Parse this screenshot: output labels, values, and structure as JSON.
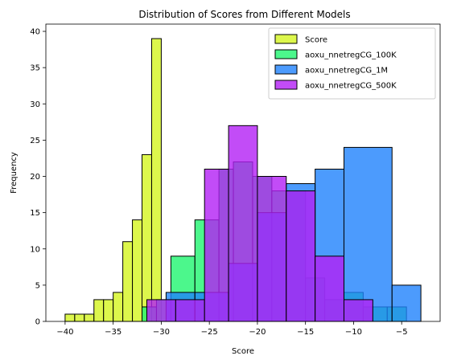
{
  "chart_data": {
    "type": "histogram",
    "title": "Distribution of Scores from Different Models",
    "xlabel": "Score",
    "ylabel": "Frequency",
    "xlim": [
      -42,
      -1
    ],
    "ylim": [
      0,
      41
    ],
    "xticks": [
      -40,
      -35,
      -30,
      -25,
      -20,
      -15,
      -10,
      -5
    ],
    "yticks": [
      0,
      5,
      10,
      15,
      20,
      25,
      30,
      35,
      40
    ],
    "grid": false,
    "legend_position": "top-right",
    "series": [
      {
        "name": "Score",
        "color": "#d4f51f",
        "bars": [
          {
            "x0": -40.0,
            "x1": -39.0,
            "value": 1
          },
          {
            "x0": -39.0,
            "x1": -38.0,
            "value": 1
          },
          {
            "x0": -38.0,
            "x1": -37.0,
            "value": 1
          },
          {
            "x0": -37.0,
            "x1": -36.0,
            "value": 3
          },
          {
            "x0": -36.0,
            "x1": -35.0,
            "value": 3
          },
          {
            "x0": -35.0,
            "x1": -34.0,
            "value": 4
          },
          {
            "x0": -34.0,
            "x1": -33.0,
            "value": 11
          },
          {
            "x0": -33.0,
            "x1": -32.0,
            "value": 14
          },
          {
            "x0": -32.0,
            "x1": -31.0,
            "value": 23
          },
          {
            "x0": -31.0,
            "x1": -30.0,
            "value": 39
          }
        ]
      },
      {
        "name": "aoxu_nnetregCG_100K",
        "color": "#1ff56f",
        "bars": [
          {
            "x0": -32.0,
            "x1": -30.5,
            "value": 2
          },
          {
            "x0": -30.5,
            "x1": -29.0,
            "value": 3
          },
          {
            "x0": -29.0,
            "x1": -26.5,
            "value": 9
          },
          {
            "x0": -26.5,
            "x1": -24.0,
            "value": 14
          },
          {
            "x0": -24.0,
            "x1": -22.5,
            "value": 21
          },
          {
            "x0": -22.5,
            "x1": -20.5,
            "value": 22
          },
          {
            "x0": -20.5,
            "x1": -18.5,
            "value": 20
          },
          {
            "x0": -18.5,
            "x1": -17.0,
            "value": 18
          },
          {
            "x0": -17.0,
            "x1": -15.0,
            "value": 18
          },
          {
            "x0": -15.0,
            "x1": -13.0,
            "value": 6
          },
          {
            "x0": -13.0,
            "x1": -11.0,
            "value": 3
          },
          {
            "x0": -11.0,
            "x1": -9.0,
            "value": 4
          },
          {
            "x0": -9.0,
            "x1": -6.5,
            "value": 2
          },
          {
            "x0": -6.5,
            "x1": -4.5,
            "value": 2
          }
        ]
      },
      {
        "name": "aoxu_nnetregCG_1M",
        "color": "#1f82fc",
        "bars": [
          {
            "x0": -29.5,
            "x1": -26.5,
            "value": 4
          },
          {
            "x0": -26.5,
            "x1": -23.0,
            "value": 4
          },
          {
            "x0": -23.0,
            "x1": -20.0,
            "value": 8
          },
          {
            "x0": -20.0,
            "x1": -17.0,
            "value": 15
          },
          {
            "x0": -17.0,
            "x1": -14.0,
            "value": 19
          },
          {
            "x0": -14.0,
            "x1": -11.0,
            "value": 21
          },
          {
            "x0": -11.0,
            "x1": -6.0,
            "value": 24
          },
          {
            "x0": -6.0,
            "x1": -3.0,
            "value": 5
          }
        ]
      },
      {
        "name": "aoxu_nnetregCG_500K",
        "color": "#b31ff5",
        "bars": [
          {
            "x0": -31.5,
            "x1": -28.5,
            "value": 3
          },
          {
            "x0": -28.5,
            "x1": -25.5,
            "value": 3
          },
          {
            "x0": -25.5,
            "x1": -23.0,
            "value": 21
          },
          {
            "x0": -23.0,
            "x1": -20.0,
            "value": 27
          },
          {
            "x0": -20.0,
            "x1": -17.0,
            "value": 20
          },
          {
            "x0": -17.0,
            "x1": -14.0,
            "value": 18
          },
          {
            "x0": -14.0,
            "x1": -11.0,
            "value": 9
          },
          {
            "x0": -11.0,
            "x1": -8.0,
            "value": 3
          }
        ]
      }
    ]
  }
}
